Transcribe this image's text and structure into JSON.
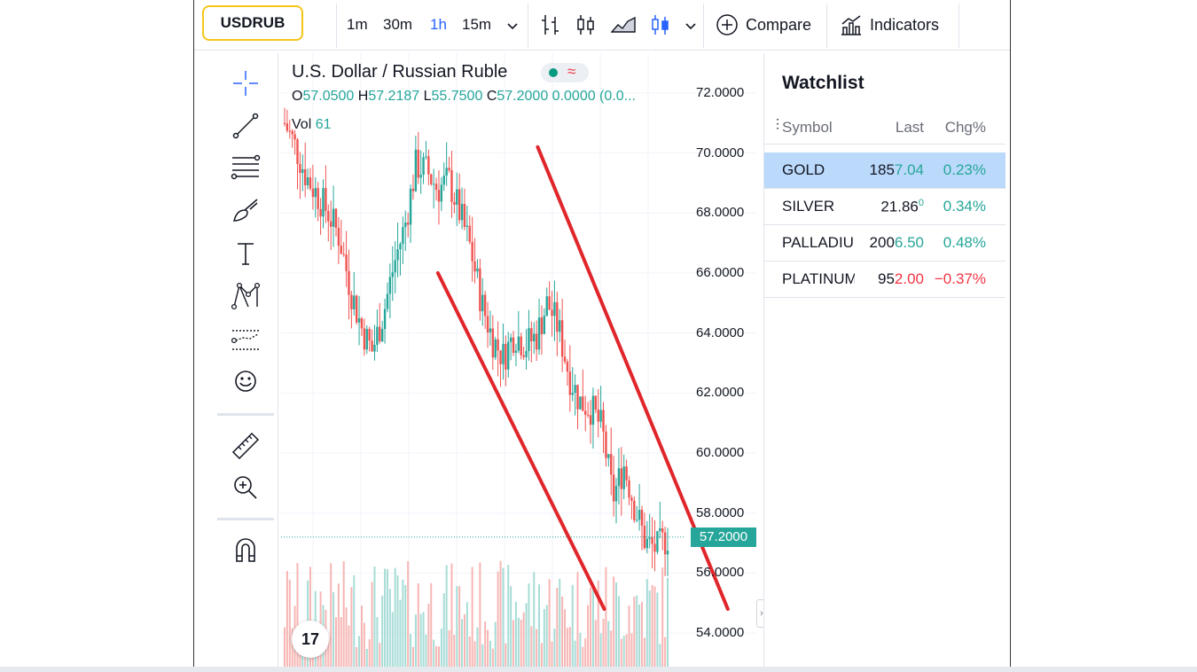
{
  "toolbar": {
    "symbol": "USDRUB",
    "timeframes": [
      "1m",
      "30m",
      "1h",
      "15m"
    ],
    "active_timeframe": "1h",
    "compare_label": "Compare",
    "indicators_label": "Indicators"
  },
  "chart": {
    "title": "U.S. Dollar / Russian Ruble",
    "ohlc": {
      "o_label": "O",
      "o": "57.0500",
      "h_label": "H",
      "h": "57.2187",
      "l_label": "L",
      "l": "55.7500",
      "c_label": "C",
      "c": "57.2000",
      "change": "0.0000 (0.0..."
    },
    "vol_label": "Vol",
    "vol_value": "61",
    "logo_text": "17",
    "pill_marker": "≈"
  },
  "chart_data": {
    "type": "candlestick",
    "title": "U.S. Dollar / Russian Ruble",
    "y_ticks": [
      "72.0000",
      "70.0000",
      "68.0000",
      "66.0000",
      "64.0000",
      "62.0000",
      "60.0000",
      "58.0000",
      "56.0000",
      "54.0000"
    ],
    "ylim": [
      53.5,
      72.5
    ],
    "last_price": "57.2000",
    "last_price_value": 57.2,
    "close_path": [
      71,
      70.2,
      69.2,
      68.6,
      68.0,
      67.2,
      65.5,
      64.2,
      63.4,
      64.6,
      66.3,
      67.6,
      69.6,
      69.4,
      68.8,
      69.1,
      68.0,
      66.8,
      65.0,
      63.8,
      63.2,
      64.0,
      63.6,
      63.9,
      65.0,
      64.2,
      62.6,
      61.7,
      61.5,
      60.8,
      58.5,
      59.6,
      58.2,
      57.0,
      56.8,
      57.2
    ],
    "trendlines": [
      {
        "from": [
          0.33,
          66.0
        ],
        "to": [
          0.68,
          54.8
        ]
      },
      {
        "from": [
          0.54,
          70.2
        ],
        "to": [
          0.94,
          54.8
        ]
      }
    ],
    "colors": {
      "up": "#26a69a",
      "down": "#ef5350",
      "trendline": "#e0262b"
    }
  },
  "watchlist": {
    "title": "Watchlist",
    "columns": [
      "Symbol",
      "Last",
      "Chg%"
    ],
    "rows": [
      {
        "symbol": "GOLD",
        "last_a": "185",
        "last_b": "7.04",
        "chg": "0.23%",
        "dir": "up"
      },
      {
        "symbol": "SILVER",
        "last_a": "21.86",
        "last_b": "0",
        "chg": "0.34%",
        "dir": "up"
      },
      {
        "symbol": "PALLADIUM",
        "last_a": "200",
        "last_b": "6.50",
        "chg": "0.48%",
        "dir": "up"
      },
      {
        "symbol": "PLATINUM",
        "last_a": "95",
        "last_b": "2.00",
        "chg": "−0.37%",
        "dir": "down"
      }
    ]
  },
  "icons": [
    "crosshair-icon",
    "trendline-icon",
    "fib-icon",
    "brush-icon",
    "text-icon",
    "pattern-icon",
    "forecast-icon",
    "emoji-icon",
    "ruler-icon",
    "zoom-icon",
    "magnet-icon",
    "bar-chart-icon",
    "candles-icon",
    "area-icon",
    "hollow-candles-icon",
    "plus-circle-icon",
    "indicators-icon"
  ]
}
